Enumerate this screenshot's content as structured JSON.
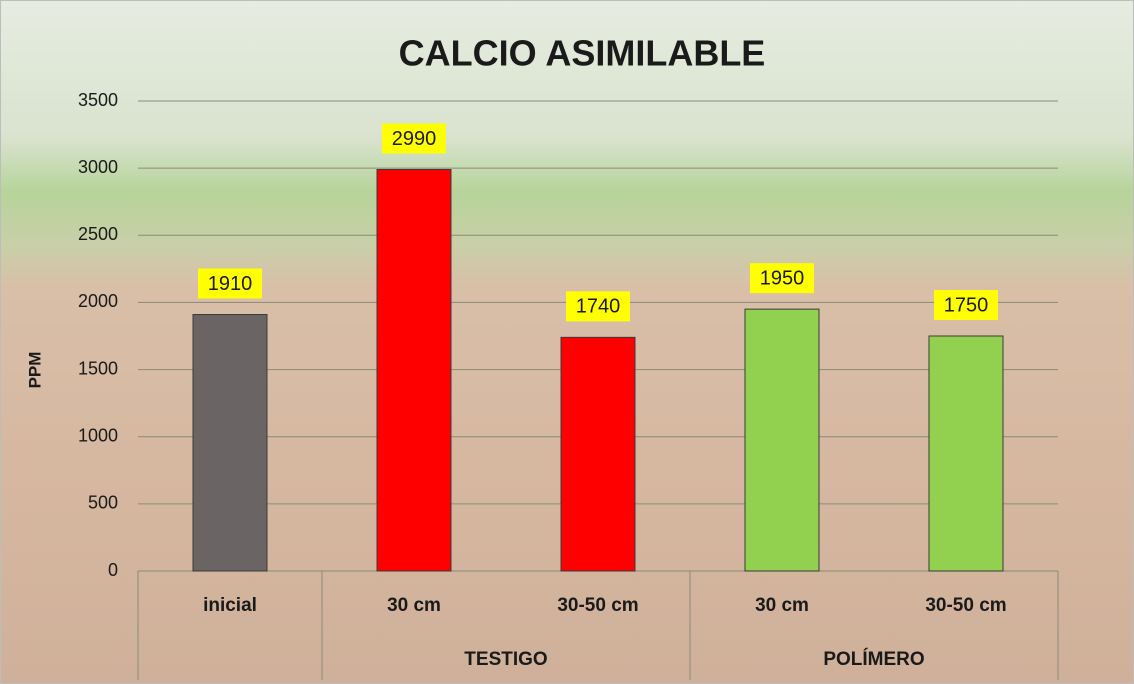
{
  "chart_data": {
    "type": "bar",
    "title": "CALCIO ASIMILABLE",
    "y_label": "PPM",
    "groups": [
      {
        "name": null,
        "categories": [
          "inicial"
        ],
        "values": [
          1910
        ],
        "color": "#6b6464"
      },
      {
        "name": "TESTIGO",
        "categories": [
          "30 cm",
          "30-50 cm"
        ],
        "values": [
          2990,
          1740
        ],
        "color": "#ff0000"
      },
      {
        "name": "POLÍMERO",
        "categories": [
          "30 cm",
          "30-50 cm"
        ],
        "values": [
          1950,
          1750
        ],
        "color": "#92d050"
      }
    ],
    "ylim": [
      0,
      3500
    ],
    "yticks": [
      0,
      500,
      1000,
      1500,
      2000,
      2500,
      3000,
      3500
    ],
    "grid": true,
    "label_background": "#ffff00"
  }
}
